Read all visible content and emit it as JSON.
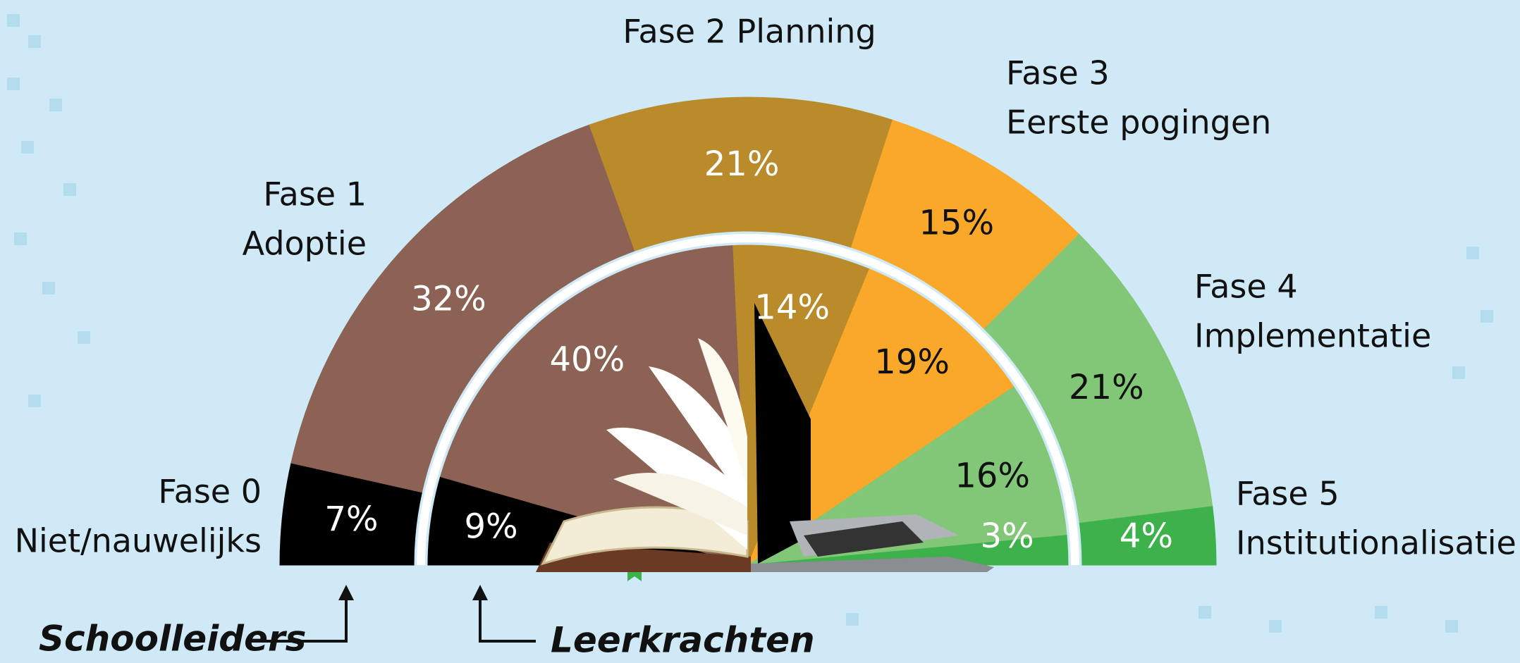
{
  "chart_data": {
    "type": "semi-donut",
    "categories": [
      [
        "Fase 0",
        "Niet/nauwelijks"
      ],
      [
        "Fase 1",
        "Adoptie"
      ],
      [
        "Fase 2 Planning"
      ],
      [
        "Fase 3",
        "Eerste pogingen"
      ],
      [
        "Fase 4",
        "Implementatie"
      ],
      [
        "Fase 5",
        "Institutionalisatie"
      ]
    ],
    "colors": [
      "#000000",
      "#8b6254",
      "#b98b2a",
      "#f9a82a",
      "#82c677",
      "#3db24b"
    ],
    "series": [
      {
        "name": "Schoolleiders",
        "ring": "outer",
        "values": [
          7,
          32,
          21,
          15,
          21,
          4
        ],
        "value_labels": [
          "7%",
          "32%",
          "21%",
          "15%",
          "21%",
          "4%"
        ]
      },
      {
        "name": "Leerkrachten",
        "ring": "inner",
        "values": [
          9,
          40,
          14,
          19,
          16,
          3
        ],
        "value_labels": [
          "9%",
          "40%",
          "14%",
          "19%",
          "16%",
          "3%"
        ]
      }
    ]
  }
}
